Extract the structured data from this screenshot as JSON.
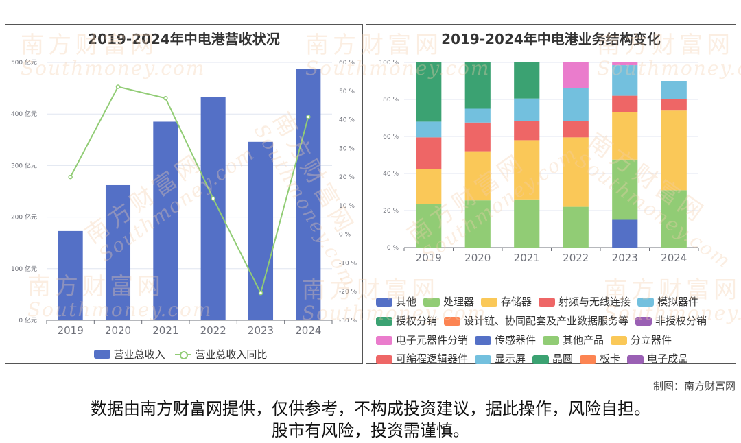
{
  "watermark": {
    "cn": "南方财富网",
    "en": "Southmoney.com"
  },
  "chart_data": [
    {
      "type": "bar",
      "title": "2019-2024年中电港营收状况",
      "categories": [
        "2019",
        "2020",
        "2021",
        "2022",
        "2023",
        "2024"
      ],
      "series": [
        {
          "name": "营业总收入",
          "type": "bar",
          "axis": "left",
          "color": "#5470c6",
          "values": [
            173,
            262,
            385,
            433,
            346,
            487
          ]
        },
        {
          "name": "营业总收入同比",
          "type": "line",
          "axis": "right",
          "color": "#91cc75",
          "values": [
            20,
            51.5,
            47.5,
            12.5,
            -20.5,
            41
          ]
        }
      ],
      "yleft": {
        "min": 0,
        "max": 500,
        "ticks": [
          0,
          100,
          200,
          300,
          400,
          500
        ],
        "suffix": " 亿元"
      },
      "yright": {
        "min": -30,
        "max": 60,
        "ticks": [
          -30,
          -20,
          -10,
          0,
          10,
          20,
          30,
          40,
          50,
          60
        ],
        "suffix": " %"
      },
      "grid": "horizontal",
      "legend": "bottom"
    },
    {
      "type": "bar",
      "stacked": true,
      "title": "2019-2024年中电港业务结构变化",
      "categories": [
        "2019",
        "2020",
        "2021",
        "2022",
        "2023",
        "2024"
      ],
      "y": {
        "min": 0,
        "max": 100,
        "ticks": [
          0,
          20,
          40,
          60,
          80,
          100
        ],
        "suffix": " %"
      },
      "series": [
        {
          "name": "其他",
          "color": "#5470c6",
          "values": [
            0,
            0,
            0,
            0,
            0,
            0
          ]
        },
        {
          "name": "处理器",
          "color": "#91cc75",
          "values": [
            23.5,
            25.5,
            26,
            22,
            0,
            0
          ]
        },
        {
          "name": "存储器",
          "color": "#fac858",
          "values": [
            19,
            26.5,
            32,
            37.5,
            0,
            0
          ]
        },
        {
          "name": "射频与无线连接",
          "color": "#ee6666",
          "values": [
            17,
            15.5,
            10.5,
            9,
            0,
            0
          ]
        },
        {
          "name": "模拟器件",
          "color": "#73c0de",
          "values": [
            8.5,
            7.5,
            12,
            17.5,
            0,
            0
          ]
        },
        {
          "name": "授权分销",
          "color": "#3ba272",
          "values": [
            32,
            25,
            19.5,
            0,
            0,
            0
          ]
        },
        {
          "name": "设计链、协同配套及产业数据服务等",
          "color": "#fc8452",
          "values": [
            0,
            0,
            0,
            0,
            0,
            0
          ]
        },
        {
          "name": "非授权分销",
          "color": "#9a60b4",
          "values": [
            0,
            0,
            0,
            0,
            0,
            0
          ]
        },
        {
          "name": "电子元器件分销",
          "color": "#ea7ccc",
          "values": [
            0,
            0,
            0,
            14,
            0,
            0
          ]
        },
        {
          "name": "传感器件",
          "color": "#5470c6",
          "values": [
            0,
            0,
            0,
            0,
            15,
            0
          ]
        },
        {
          "name": "其他产品",
          "color": "#91cc75",
          "values": [
            0,
            0,
            0,
            0,
            32.5,
            31
          ]
        },
        {
          "name": "分立器件",
          "color": "#fac858",
          "values": [
            0,
            0,
            0,
            0,
            25.5,
            43
          ]
        },
        {
          "name": "可编程逻辑器件",
          "color": "#ee6666",
          "values": [
            0,
            0,
            0,
            0,
            9,
            6
          ]
        },
        {
          "name": "显示屏",
          "color": "#73c0de",
          "values": [
            0,
            0,
            0,
            0,
            16.5,
            10
          ]
        },
        {
          "name": "晶圆",
          "color": "#3ba272",
          "values": [
            0,
            0,
            0,
            0,
            0,
            0
          ]
        },
        {
          "name": "板卡",
          "color": "#fc8452",
          "values": [
            0,
            0,
            0,
            0,
            0,
            0
          ]
        },
        {
          "name": "电子成品",
          "color": "#9a60b4",
          "values": [
            0,
            0,
            0,
            0,
            0,
            0
          ]
        },
        {
          "name": "",
          "color": "#ea7ccc",
          "values": [
            0,
            0,
            0,
            0,
            1.5,
            0
          ]
        }
      ],
      "grid": "horizontal",
      "legend": "bottom"
    }
  ],
  "footer": {
    "credit": "制图：南方财富网",
    "disclaimer_line1": "数据由南方财富网提供，仅供参考，不构成投资建议，据此操作，风险自担。",
    "disclaimer_line2": "股市有风险，投资需谨慎。"
  }
}
